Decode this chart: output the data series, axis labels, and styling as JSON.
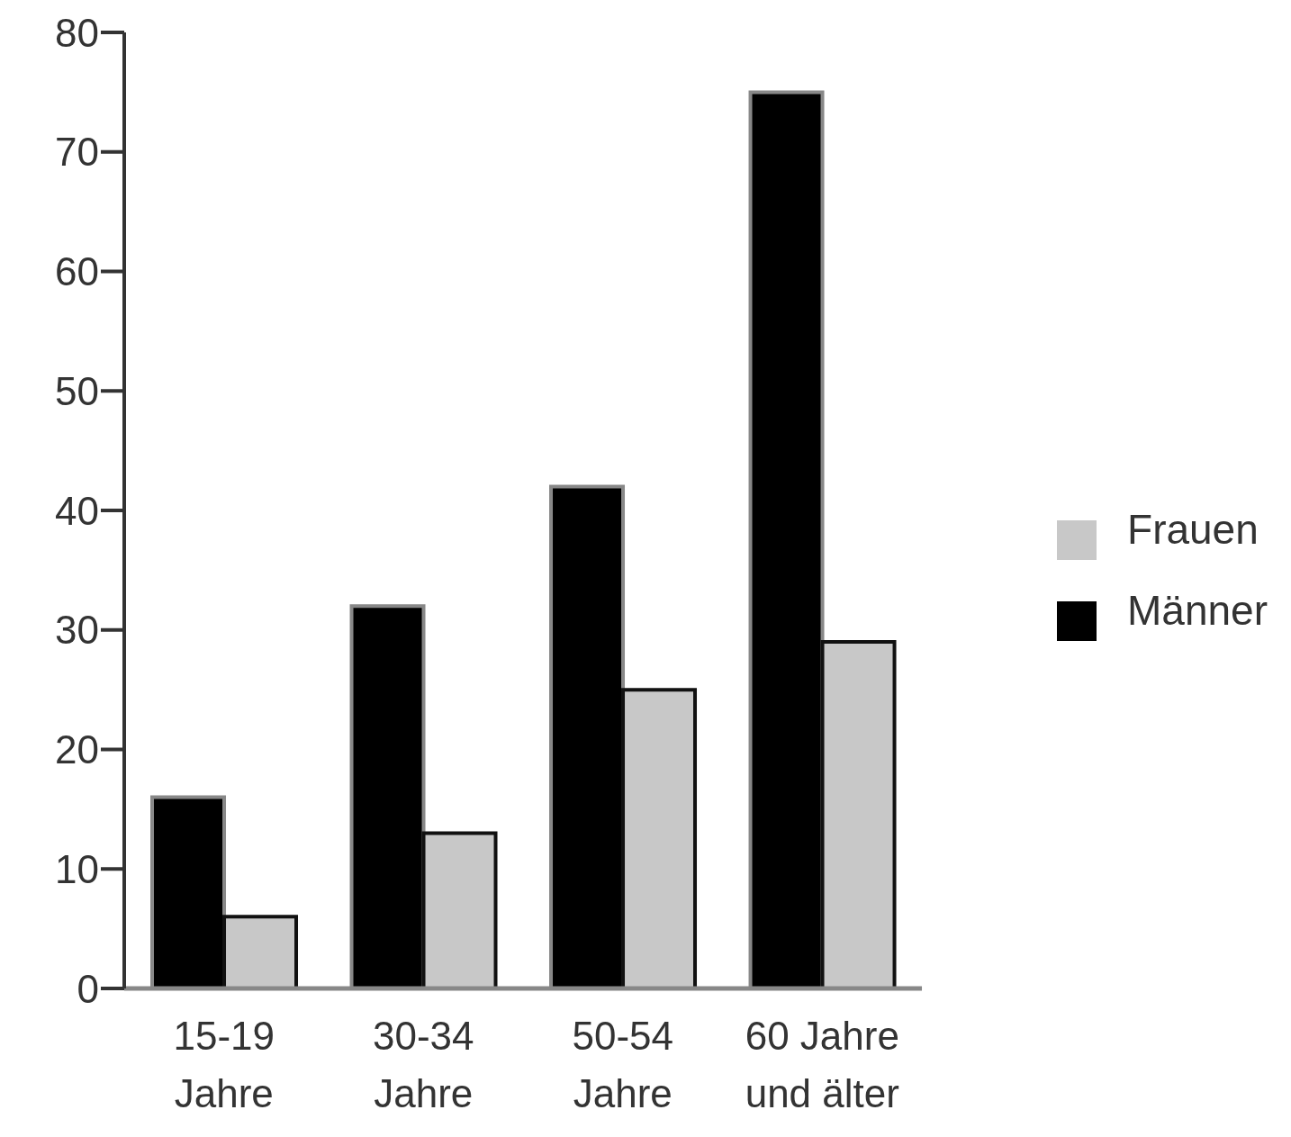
{
  "chart_data": {
    "type": "bar",
    "categories": [
      "15-19\nJahre",
      "30-34\nJahre",
      "50-54\nJahre",
      "60 Jahre\nund älter"
    ],
    "series": [
      {
        "name": "Männer",
        "color": "#000000",
        "values": [
          16,
          32,
          42,
          75
        ]
      },
      {
        "name": "Frauen",
        "color": "#c8c8c8",
        "values": [
          6,
          13,
          25,
          29
        ]
      }
    ],
    "ylim": [
      0,
      80
    ],
    "yticks": [
      0,
      10,
      20,
      30,
      40,
      50,
      60,
      70,
      80
    ],
    "grid": false,
    "legend": "right"
  }
}
